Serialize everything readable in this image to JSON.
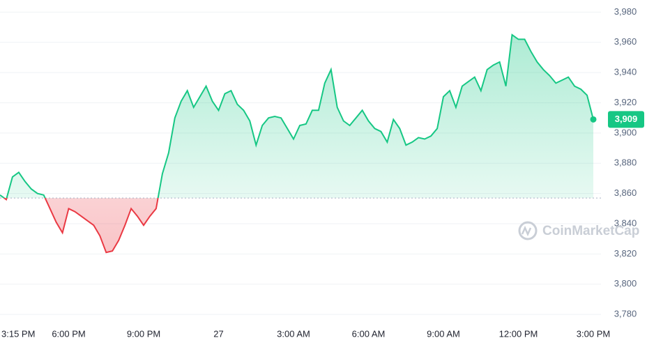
{
  "chart_data": {
    "type": "line",
    "categories": [
      "3:15 PM",
      null,
      null,
      null,
      null,
      null,
      null,
      null,
      null,
      null,
      null,
      "6:00 PM",
      null,
      null,
      null,
      null,
      null,
      null,
      null,
      null,
      null,
      null,
      null,
      "9:00 PM",
      null,
      null,
      null,
      null,
      null,
      null,
      null,
      null,
      null,
      null,
      null,
      "27",
      null,
      null,
      null,
      null,
      null,
      null,
      null,
      null,
      null,
      null,
      null,
      "3:00 AM",
      null,
      null,
      null,
      null,
      null,
      null,
      null,
      null,
      null,
      null,
      null,
      "6:00 AM",
      null,
      null,
      null,
      null,
      null,
      null,
      null,
      null,
      null,
      null,
      null,
      "9:00 AM",
      null,
      null,
      null,
      null,
      null,
      null,
      null,
      null,
      null,
      null,
      null,
      "12:00 PM",
      null,
      null,
      null,
      null,
      null,
      null,
      null,
      null,
      null,
      null,
      null,
      "3:00 PM"
    ],
    "series": [
      {
        "values": [
          3859,
          3856,
          3871,
          3874,
          3868,
          3863,
          3860,
          3859,
          3850,
          3841,
          3834,
          3850,
          3848,
          3845,
          3842,
          3839,
          3832,
          3821,
          3822,
          3829,
          3839,
          3850,
          3845,
          3839,
          3845,
          3850,
          3873,
          3887,
          3910,
          3921,
          3928,
          3917,
          3924,
          3931,
          3921,
          3915,
          3926,
          3928,
          3919,
          3915,
          3908,
          3892,
          3905,
          3910,
          3911,
          3910,
          3903,
          3896,
          3905,
          3906,
          3915,
          3915,
          3933,
          3942,
          3917,
          3908,
          3905,
          3910,
          3915,
          3908,
          3903,
          3901,
          3894,
          3909,
          3903,
          3892,
          3894,
          3897,
          3896,
          3898,
          3903,
          3924,
          3928,
          3917,
          3931,
          3934,
          3937,
          3928,
          3942,
          3945,
          3947,
          3931,
          3965,
          3962,
          3962,
          3954,
          3947,
          3942,
          3938,
          3933,
          3935,
          3937,
          3931,
          3929,
          3925,
          3909
        ]
      }
    ],
    "baseline": 3857,
    "up_color": "#16c784",
    "down_color": "#ea3943",
    "current_label": "3,909",
    "watermark": "CoinMarketCap",
    "ylim": [
      3775,
      3988
    ],
    "yticks": [
      {
        "value": 3780,
        "label": "3,780"
      },
      {
        "value": 3800,
        "label": "3,800"
      },
      {
        "value": 3820,
        "label": "3,820"
      },
      {
        "value": 3840,
        "label": "3,840"
      },
      {
        "value": 3860,
        "label": "3,860"
      },
      {
        "value": 3880,
        "label": "3,880"
      },
      {
        "value": 3900,
        "label": "3,900"
      },
      {
        "value": 3920,
        "label": "3,920"
      },
      {
        "value": 3940,
        "label": "3,940"
      },
      {
        "value": 3960,
        "label": "3,960"
      },
      {
        "value": 3980,
        "label": "3,980"
      }
    ],
    "grid": true
  }
}
